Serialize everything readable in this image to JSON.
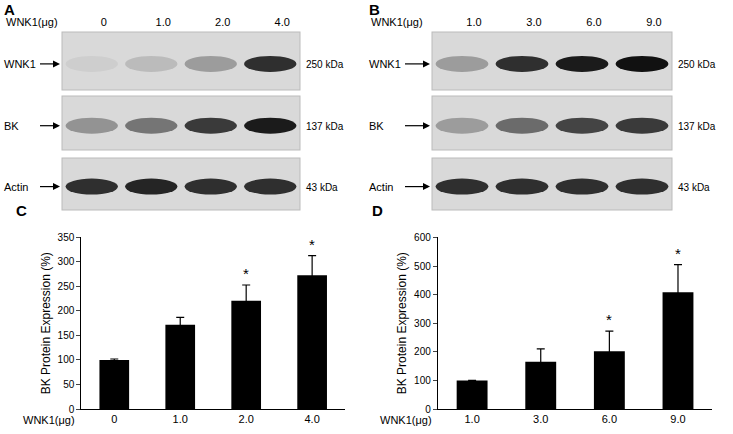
{
  "panels": [
    {
      "panel": "A",
      "header": "WNK1(μg)",
      "lanes": [
        "0",
        "1.0",
        "2.0",
        "4.0"
      ],
      "rows": [
        {
          "name": "WNK1",
          "size": "250 kDa",
          "intensity": [
            0.05,
            0.15,
            0.3,
            0.85
          ]
        },
        {
          "name": "BK",
          "size": "137 kDa",
          "intensity": [
            0.35,
            0.5,
            0.8,
            0.95
          ]
        },
        {
          "name": "Actin",
          "size": "43 kDa",
          "intensity": [
            0.85,
            0.9,
            0.85,
            0.85
          ]
        }
      ]
    },
    {
      "panel": "B",
      "header": "WNK1(μg)",
      "lanes": [
        "1.0",
        "3.0",
        "6.0",
        "9.0"
      ],
      "rows": [
        {
          "name": "WNK1",
          "size": "250 kDa",
          "intensity": [
            0.3,
            0.85,
            0.95,
            1.0
          ]
        },
        {
          "name": "BK",
          "size": "137 kDa",
          "intensity": [
            0.3,
            0.55,
            0.75,
            0.8
          ]
        },
        {
          "name": "Actin",
          "size": "43 kDa",
          "intensity": [
            0.85,
            0.85,
            0.85,
            0.85
          ]
        }
      ]
    }
  ],
  "chart_data": [
    {
      "panel": "C",
      "type": "bar",
      "categories": [
        "0",
        "1.0",
        "2.0",
        "4.0"
      ],
      "values": [
        100,
        172,
        221,
        273
      ],
      "errors": [
        2,
        15,
        32,
        40
      ],
      "color": "#000000",
      "xlabel": "WNK1(μg)",
      "ylabel": "BK Protein Expression (%)",
      "ylim": [
        0,
        350
      ],
      "yticks": [
        0,
        50,
        100,
        150,
        200,
        250,
        300,
        350
      ],
      "grid": false,
      "annotations": [
        {
          "category": "2.0",
          "text": "*"
        },
        {
          "category": "4.0",
          "text": "*"
        }
      ]
    },
    {
      "panel": "D",
      "type": "bar",
      "categories": [
        "1.0",
        "3.0",
        "6.0",
        "9.0"
      ],
      "values": [
        100,
        165,
        202,
        408
      ],
      "errors": [
        0,
        45,
        70,
        97
      ],
      "color": "#000000",
      "xlabel": "WNK1(μg)",
      "ylabel": "BK Protein Expression (%)",
      "ylim": [
        0,
        600
      ],
      "yticks": [
        0,
        100,
        200,
        300,
        400,
        500,
        600
      ],
      "grid": false,
      "annotations": [
        {
          "category": "6.0",
          "text": "*"
        },
        {
          "category": "9.0",
          "text": "*"
        }
      ]
    }
  ]
}
